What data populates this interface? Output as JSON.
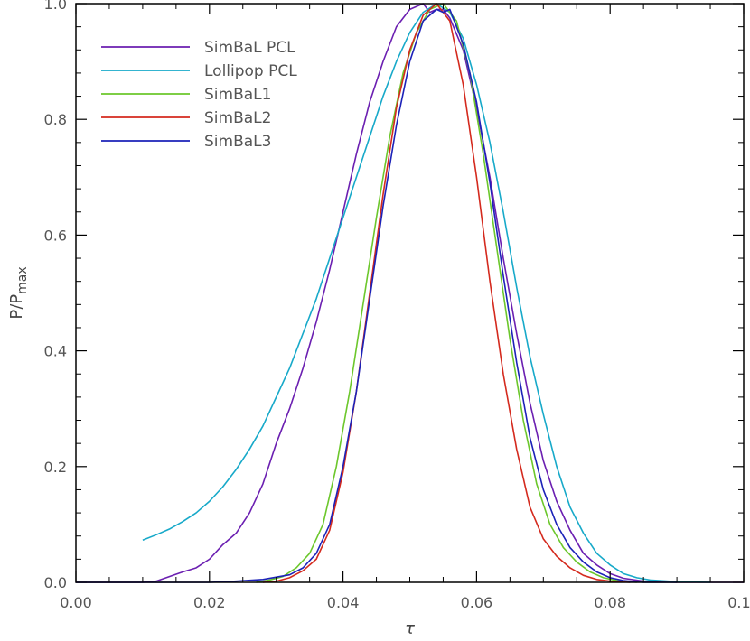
{
  "chart_data": {
    "type": "line",
    "title": "",
    "xlabel": "τ",
    "ylabel": "P/P",
    "ylabel_sub": "max",
    "xlim": [
      0.0,
      0.1
    ],
    "ylim": [
      0.0,
      1.0
    ],
    "x_ticks": [
      "0.00",
      "0.02",
      "0.04",
      "0.06",
      "0.08",
      "0.10"
    ],
    "y_ticks": [
      "0.0",
      "0.2",
      "0.4",
      "0.6",
      "0.8",
      "1.0"
    ],
    "grid": false,
    "legend_position": "top-left",
    "series": [
      {
        "name": "SimBaL PCL",
        "color": "#6b1fb1",
        "points": [
          [
            0.0,
            0.0
          ],
          [
            0.005,
            0.0
          ],
          [
            0.01,
            0.0
          ],
          [
            0.012,
            0.002
          ],
          [
            0.014,
            0.01
          ],
          [
            0.016,
            0.018
          ],
          [
            0.018,
            0.025
          ],
          [
            0.02,
            0.04
          ],
          [
            0.022,
            0.065
          ],
          [
            0.024,
            0.085
          ],
          [
            0.026,
            0.12
          ],
          [
            0.028,
            0.17
          ],
          [
            0.03,
            0.24
          ],
          [
            0.032,
            0.3
          ],
          [
            0.034,
            0.37
          ],
          [
            0.036,
            0.45
          ],
          [
            0.038,
            0.54
          ],
          [
            0.04,
            0.64
          ],
          [
            0.042,
            0.74
          ],
          [
            0.044,
            0.83
          ],
          [
            0.046,
            0.9
          ],
          [
            0.048,
            0.96
          ],
          [
            0.05,
            0.99
          ],
          [
            0.052,
            1.0
          ],
          [
            0.053,
            0.985
          ],
          [
            0.054,
            0.99
          ],
          [
            0.055,
            0.99
          ],
          [
            0.056,
            0.975
          ],
          [
            0.058,
            0.92
          ],
          [
            0.06,
            0.82
          ],
          [
            0.062,
            0.7
          ],
          [
            0.064,
            0.56
          ],
          [
            0.066,
            0.43
          ],
          [
            0.068,
            0.31
          ],
          [
            0.07,
            0.21
          ],
          [
            0.072,
            0.14
          ],
          [
            0.074,
            0.09
          ],
          [
            0.076,
            0.05
          ],
          [
            0.078,
            0.03
          ],
          [
            0.08,
            0.015
          ],
          [
            0.082,
            0.007
          ],
          [
            0.085,
            0.002
          ],
          [
            0.09,
            0.0
          ],
          [
            0.1,
            0.0
          ]
        ]
      },
      {
        "name": "Lollipop PCL",
        "color": "#17a9c9",
        "points": [
          [
            0.01,
            0.073
          ],
          [
            0.012,
            0.082
          ],
          [
            0.014,
            0.092
          ],
          [
            0.016,
            0.105
          ],
          [
            0.018,
            0.12
          ],
          [
            0.02,
            0.14
          ],
          [
            0.022,
            0.165
          ],
          [
            0.024,
            0.195
          ],
          [
            0.026,
            0.23
          ],
          [
            0.028,
            0.27
          ],
          [
            0.03,
            0.32
          ],
          [
            0.032,
            0.37
          ],
          [
            0.034,
            0.43
          ],
          [
            0.036,
            0.49
          ],
          [
            0.038,
            0.56
          ],
          [
            0.04,
            0.63
          ],
          [
            0.042,
            0.7
          ],
          [
            0.044,
            0.77
          ],
          [
            0.046,
            0.84
          ],
          [
            0.048,
            0.9
          ],
          [
            0.05,
            0.95
          ],
          [
            0.052,
            0.985
          ],
          [
            0.054,
            1.0
          ],
          [
            0.056,
            0.985
          ],
          [
            0.058,
            0.94
          ],
          [
            0.06,
            0.86
          ],
          [
            0.062,
            0.76
          ],
          [
            0.064,
            0.64
          ],
          [
            0.066,
            0.51
          ],
          [
            0.068,
            0.39
          ],
          [
            0.07,
            0.29
          ],
          [
            0.072,
            0.2
          ],
          [
            0.074,
            0.13
          ],
          [
            0.076,
            0.085
          ],
          [
            0.078,
            0.05
          ],
          [
            0.08,
            0.03
          ],
          [
            0.082,
            0.015
          ],
          [
            0.084,
            0.008
          ],
          [
            0.086,
            0.004
          ],
          [
            0.09,
            0.001
          ],
          [
            0.095,
            0.0
          ]
        ]
      },
      {
        "name": "SimBaL1",
        "color": "#6cc72c",
        "points": [
          [
            0.027,
            0.0
          ],
          [
            0.029,
            0.004
          ],
          [
            0.031,
            0.01
          ],
          [
            0.033,
            0.025
          ],
          [
            0.035,
            0.05
          ],
          [
            0.037,
            0.1
          ],
          [
            0.039,
            0.2
          ],
          [
            0.041,
            0.33
          ],
          [
            0.043,
            0.48
          ],
          [
            0.045,
            0.63
          ],
          [
            0.047,
            0.77
          ],
          [
            0.049,
            0.88
          ],
          [
            0.051,
            0.95
          ],
          [
            0.053,
            0.99
          ],
          [
            0.055,
            1.0
          ],
          [
            0.057,
            0.97
          ],
          [
            0.059,
            0.88
          ],
          [
            0.061,
            0.74
          ],
          [
            0.063,
            0.58
          ],
          [
            0.065,
            0.42
          ],
          [
            0.067,
            0.28
          ],
          [
            0.069,
            0.17
          ],
          [
            0.071,
            0.1
          ],
          [
            0.073,
            0.06
          ],
          [
            0.075,
            0.035
          ],
          [
            0.077,
            0.018
          ],
          [
            0.079,
            0.008
          ],
          [
            0.081,
            0.003
          ],
          [
            0.084,
            0.0
          ]
        ]
      },
      {
        "name": "SimBaL2",
        "color": "#d42a1e",
        "points": [
          [
            0.028,
            0.0
          ],
          [
            0.03,
            0.002
          ],
          [
            0.032,
            0.008
          ],
          [
            0.034,
            0.02
          ],
          [
            0.036,
            0.04
          ],
          [
            0.038,
            0.09
          ],
          [
            0.04,
            0.19
          ],
          [
            0.042,
            0.33
          ],
          [
            0.044,
            0.5
          ],
          [
            0.046,
            0.67
          ],
          [
            0.048,
            0.82
          ],
          [
            0.05,
            0.92
          ],
          [
            0.052,
            0.98
          ],
          [
            0.054,
            1.0
          ],
          [
            0.056,
            0.97
          ],
          [
            0.058,
            0.86
          ],
          [
            0.06,
            0.7
          ],
          [
            0.062,
            0.52
          ],
          [
            0.064,
            0.36
          ],
          [
            0.066,
            0.23
          ],
          [
            0.068,
            0.13
          ],
          [
            0.07,
            0.075
          ],
          [
            0.072,
            0.045
          ],
          [
            0.074,
            0.025
          ],
          [
            0.076,
            0.012
          ],
          [
            0.078,
            0.005
          ],
          [
            0.08,
            0.002
          ],
          [
            0.083,
            0.0
          ]
        ]
      },
      {
        "name": "SimBaL3",
        "color": "#1c22b8",
        "points": [
          [
            0.0,
            0.0
          ],
          [
            0.01,
            0.0
          ],
          [
            0.02,
            0.0
          ],
          [
            0.024,
            0.002
          ],
          [
            0.028,
            0.005
          ],
          [
            0.032,
            0.013
          ],
          [
            0.034,
            0.025
          ],
          [
            0.036,
            0.05
          ],
          [
            0.038,
            0.1
          ],
          [
            0.04,
            0.2
          ],
          [
            0.042,
            0.33
          ],
          [
            0.044,
            0.49
          ],
          [
            0.046,
            0.65
          ],
          [
            0.048,
            0.79
          ],
          [
            0.05,
            0.9
          ],
          [
            0.052,
            0.97
          ],
          [
            0.054,
            0.99
          ],
          [
            0.055,
            0.985
          ],
          [
            0.056,
            0.99
          ],
          [
            0.058,
            0.93
          ],
          [
            0.06,
            0.83
          ],
          [
            0.062,
            0.69
          ],
          [
            0.064,
            0.53
          ],
          [
            0.066,
            0.38
          ],
          [
            0.068,
            0.25
          ],
          [
            0.07,
            0.16
          ],
          [
            0.072,
            0.1
          ],
          [
            0.074,
            0.06
          ],
          [
            0.076,
            0.035
          ],
          [
            0.078,
            0.018
          ],
          [
            0.08,
            0.008
          ],
          [
            0.082,
            0.003
          ],
          [
            0.085,
            0.0
          ],
          [
            0.09,
            0.0
          ]
        ]
      }
    ]
  }
}
